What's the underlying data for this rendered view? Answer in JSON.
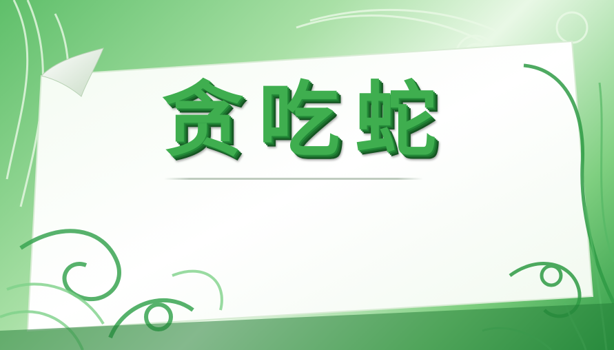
{
  "screen": {
    "title": "贪吃蛇"
  },
  "colors": {
    "title_green": "#3fae4f",
    "title_shadow": "#1c6f2d",
    "frame_green": "#2f9b45",
    "paper": "#ffffff"
  }
}
